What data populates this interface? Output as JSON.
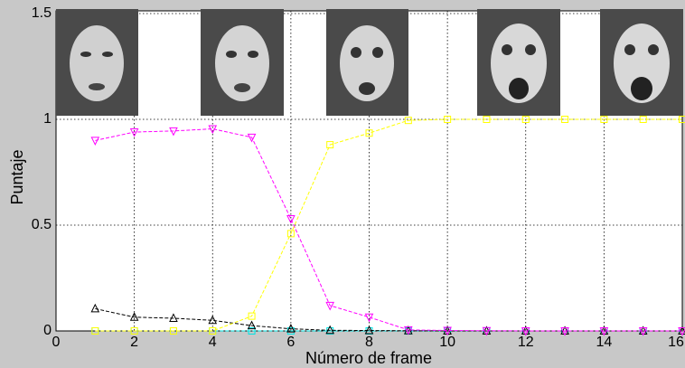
{
  "chart_data": {
    "type": "line",
    "xlabel": "Número de frame",
    "ylabel": "Puntaje",
    "x": [
      1,
      2,
      3,
      4,
      5,
      6,
      7,
      8,
      9,
      10,
      11,
      12,
      13,
      14,
      15,
      16
    ],
    "series": [
      {
        "color": "#00e5e5",
        "marker": "square",
        "values": [
          0,
          0,
          0,
          0,
          0,
          0,
          0,
          0,
          0,
          0,
          0,
          0,
          0,
          0,
          0,
          0
        ]
      },
      {
        "color": "#000000",
        "marker": "triangle-up",
        "values": [
          0.105,
          0.065,
          0.06,
          0.05,
          0.025,
          0.01,
          0.003,
          0.002,
          0.001,
          0,
          0,
          0,
          0,
          0,
          0,
          0
        ]
      },
      {
        "color": "#ff00ff",
        "marker": "triangle-down",
        "values": [
          0.9,
          0.94,
          0.945,
          0.955,
          0.915,
          0.53,
          0.12,
          0.065,
          0.005,
          0.002,
          0.001,
          0,
          0,
          0,
          0,
          0
        ]
      },
      {
        "color": "#ffff00",
        "marker": "square",
        "values": [
          0,
          0,
          0,
          0,
          0.07,
          0.46,
          0.88,
          0.935,
          0.995,
          1,
          1,
          1,
          1,
          1,
          1,
          1
        ]
      }
    ],
    "xlim": [
      0,
      16
    ],
    "xticks": [
      0,
      2,
      4,
      6,
      8,
      10,
      12,
      14,
      16
    ],
    "ylim": [
      0,
      1.5
    ],
    "yticks": [
      0,
      0.5,
      1,
      1.5
    ],
    "grid": true
  }
}
